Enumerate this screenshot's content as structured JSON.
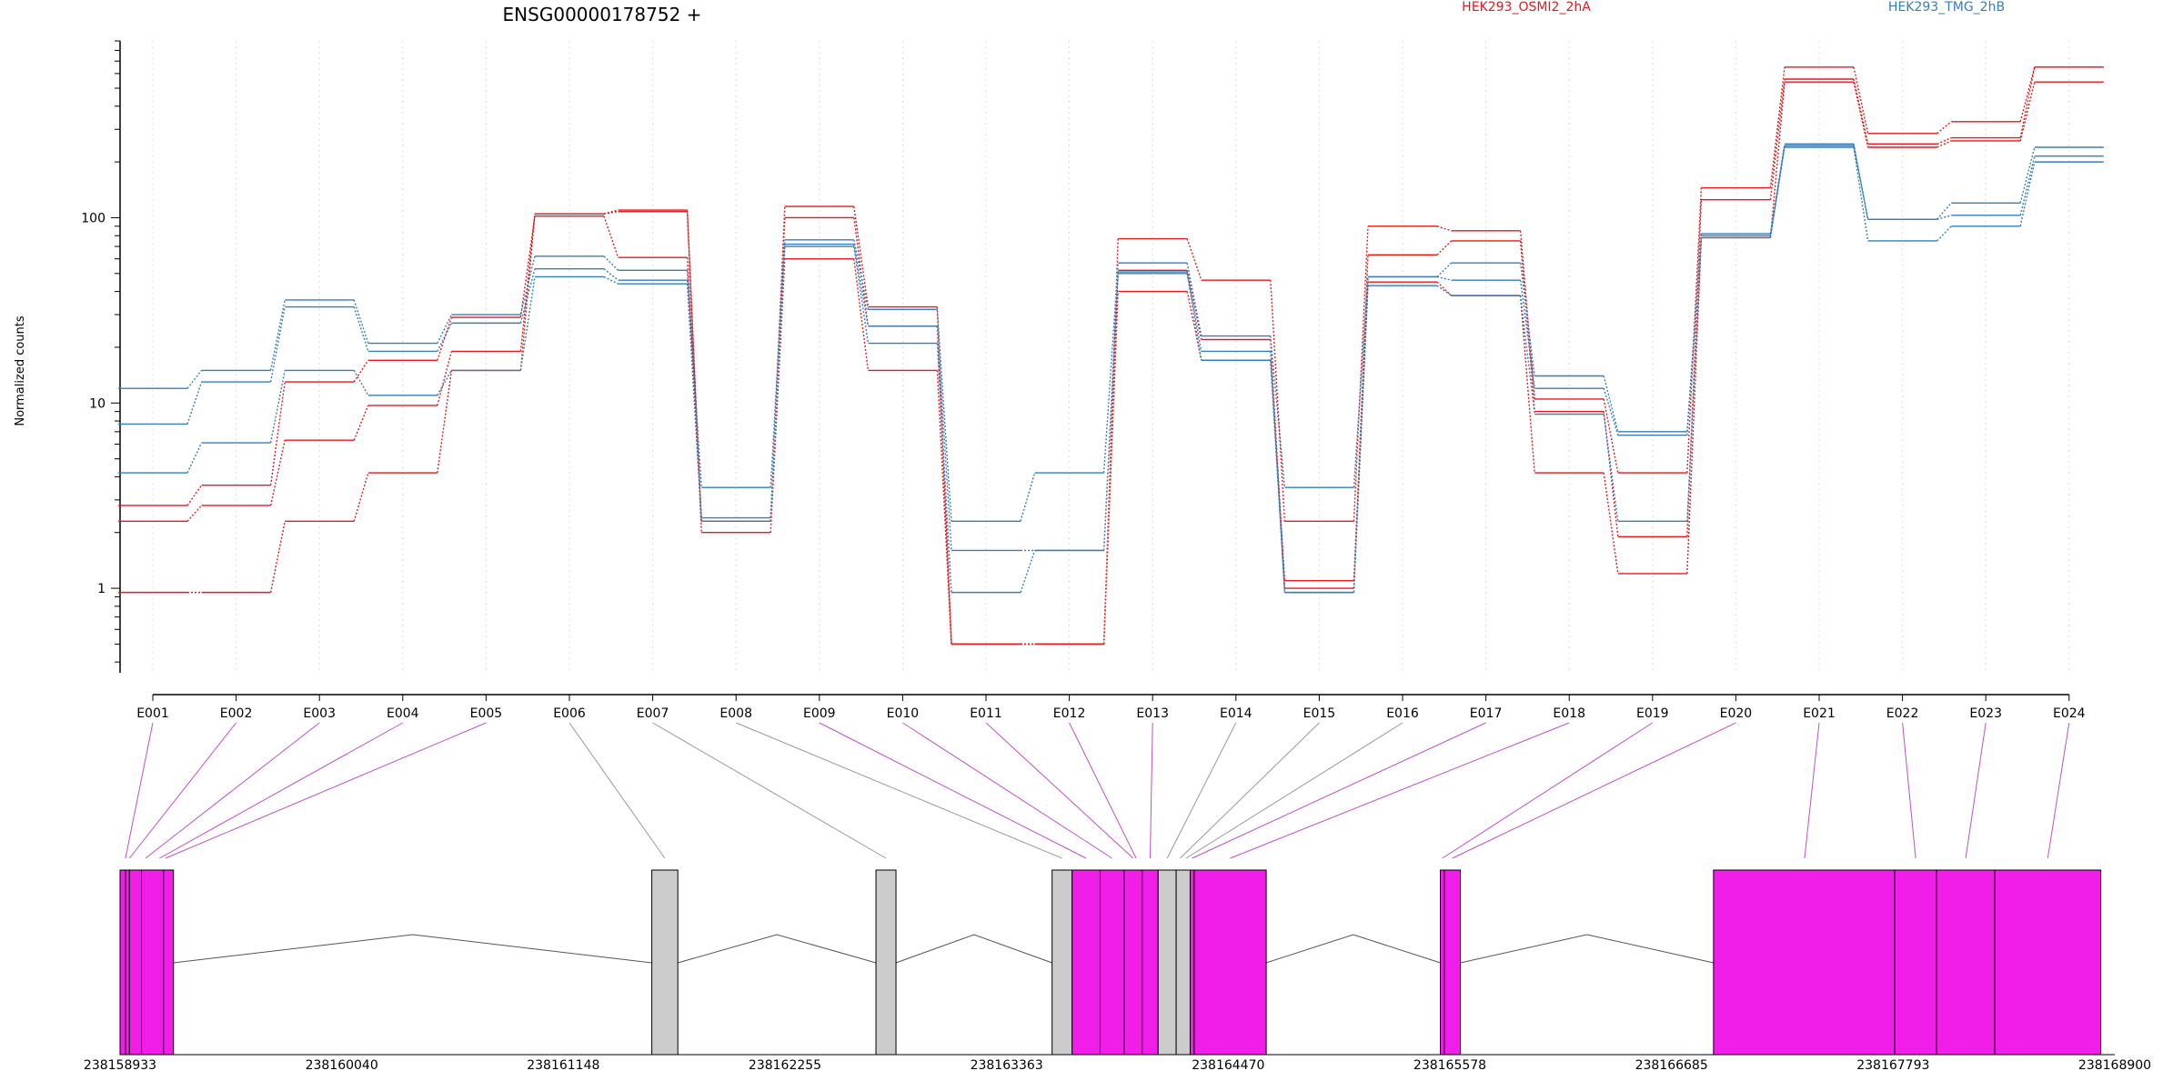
{
  "chart_data": {
    "type": "line",
    "title": "ENSG00000178752 +",
    "ylabel": "Normalized counts",
    "xlabel": "",
    "yscale": "log",
    "ylim": [
      0.35,
      900
    ],
    "yticks": [
      1,
      10,
      100
    ],
    "ytick_labels": [
      "1",
      "10",
      "100"
    ],
    "grid": "vertical dotted",
    "legend": [
      {
        "name": "HEK293_OSMI2_2hA",
        "color": "#e41a1c",
        "placement": "top-center-right"
      },
      {
        "name": "HEK293_TMG_2hB",
        "color": "#377eb8",
        "placement": "top-right"
      }
    ],
    "categories": [
      "E001",
      "E002",
      "E003",
      "E004",
      "E005",
      "E006",
      "E007",
      "E008",
      "E009",
      "E010",
      "E011",
      "E012",
      "E013",
      "E014",
      "E015",
      "E016",
      "E017",
      "E018",
      "E019",
      "E020",
      "E021",
      "E022",
      "E023",
      "E024"
    ],
    "series": [
      {
        "group": "HEK293_OSMI2_2hA",
        "color": "#e41a1c",
        "values": [
          0.95,
          0.95,
          2.3,
          4.2,
          15,
          105,
          110,
          2.0,
          60,
          15,
          0.5,
          0.5,
          40,
          17,
          1.1,
          45,
          38,
          4.2,
          1.2,
          78,
          540,
          240,
          260,
          540
        ]
      },
      {
        "group": "HEK293_OSMI2_2hA",
        "color": "#e41a1c",
        "values": [
          2.3,
          2.8,
          6.3,
          9.7,
          19,
          105,
          108,
          2.3,
          100,
          26,
          0.5,
          0.5,
          52,
          22,
          1.0,
          63,
          75,
          9.0,
          1.9,
          125,
          560,
          250,
          270,
          650
        ]
      },
      {
        "group": "HEK293_OSMI2_2hA",
        "color": "#e41a1c",
        "values": [
          2.8,
          3.6,
          13,
          17,
          29,
          102,
          61,
          2.3,
          115,
          33,
          0.5,
          0.5,
          77,
          46,
          2.3,
          90,
          85,
          10.5,
          4.2,
          145,
          650,
          285,
          330,
          650
        ]
      },
      {
        "group": "HEK293_TMG_2hB",
        "color": "#377eb8",
        "values": [
          4.2,
          6.1,
          15,
          11,
          15,
          48,
          44,
          2.3,
          70,
          21,
          0.95,
          1.6,
          50,
          17,
          0.95,
          43,
          38,
          8.7,
          2.3,
          78,
          240,
          75,
          90,
          200
        ]
      },
      {
        "group": "HEK293_TMG_2hB",
        "color": "#377eb8",
        "values": [
          7.7,
          13,
          33,
          19,
          27,
          53,
          46,
          2.4,
          72,
          26,
          1.6,
          1.6,
          51,
          19,
          0.95,
          48,
          46,
          12,
          6.7,
          80,
          245,
          98,
          103,
          215
        ]
      },
      {
        "group": "HEK293_TMG_2hB",
        "color": "#377eb8",
        "values": [
          12,
          15,
          36,
          21,
          30,
          62,
          52,
          3.5,
          76,
          32,
          2.3,
          4.2,
          57,
          23,
          3.5,
          48,
          57,
          14,
          7.0,
          82,
          250,
          98,
          120,
          240
        ]
      }
    ],
    "gene_model": {
      "coordinate_labels": [
        "238158933",
        "238160040",
        "238161148",
        "238162255",
        "238163363",
        "238164470",
        "238165578",
        "238166685",
        "238167793",
        "238168900"
      ],
      "coord_range": [
        238158933,
        238168900
      ],
      "features": [
        {
          "start": 238158933,
          "end": 238158960,
          "type": "exon",
          "color": "#f01ee8"
        },
        {
          "start": 238158960,
          "end": 238158980,
          "type": "exon",
          "color": "#f01ee8"
        },
        {
          "start": 238158980,
          "end": 238159040,
          "type": "exon",
          "color": "#f01ee8"
        },
        {
          "start": 238159040,
          "end": 238159150,
          "type": "exon",
          "color": "#f01ee8"
        },
        {
          "start": 238159150,
          "end": 238159200,
          "type": "exon",
          "color": "#f01ee8"
        },
        {
          "start": 238161590,
          "end": 238161720,
          "type": "exon",
          "color": "#cccccc"
        },
        {
          "start": 238162710,
          "end": 238162810,
          "type": "exon",
          "color": "#cccccc"
        },
        {
          "start": 238163590,
          "end": 238163690,
          "type": "exon",
          "color": "#cccccc"
        },
        {
          "start": 238163690,
          "end": 238163830,
          "type": "exon",
          "color": "#f01ee8"
        },
        {
          "start": 238163830,
          "end": 238163950,
          "type": "exon",
          "color": "#f01ee8"
        },
        {
          "start": 238163950,
          "end": 238164040,
          "type": "exon",
          "color": "#f01ee8"
        },
        {
          "start": 238164040,
          "end": 238164120,
          "type": "exon",
          "color": "#f01ee8"
        },
        {
          "start": 238164120,
          "end": 238164210,
          "type": "exon",
          "color": "#cccccc"
        },
        {
          "start": 238164210,
          "end": 238164280,
          "type": "exon",
          "color": "#cccccc"
        },
        {
          "start": 238164280,
          "end": 238164300,
          "type": "exon",
          "color": "#f01ee8"
        },
        {
          "start": 238164300,
          "end": 238164660,
          "type": "exon",
          "color": "#f01ee8"
        },
        {
          "start": 238165530,
          "end": 238165550,
          "type": "exon",
          "color": "#f01ee8"
        },
        {
          "start": 238165550,
          "end": 238165630,
          "type": "exon",
          "color": "#f01ee8"
        },
        {
          "start": 238166895,
          "end": 238167800,
          "type": "exon",
          "color": "#f01ee8"
        },
        {
          "start": 238167800,
          "end": 238168010,
          "type": "exon",
          "color": "#f01ee8"
        },
        {
          "start": 238168010,
          "end": 238168300,
          "type": "exon",
          "color": "#f01ee8"
        },
        {
          "start": 238168300,
          "end": 238168830,
          "type": "exon",
          "color": "#f01ee8"
        }
      ],
      "introns": [
        [
          238159200,
          238161590
        ],
        [
          238161720,
          238162710
        ],
        [
          238162810,
          238163590
        ],
        [
          238164660,
          238165530
        ],
        [
          238165630,
          238166895
        ]
      ],
      "connectors": [
        {
          "exon": "E001",
          "coord": 238158960,
          "color": "#c050c8"
        },
        {
          "exon": "E002",
          "coord": 238158980,
          "color": "#c050c8"
        },
        {
          "exon": "E003",
          "coord": 238159060,
          "color": "#c050c8"
        },
        {
          "exon": "E004",
          "coord": 238159130,
          "color": "#c050c8"
        },
        {
          "exon": "E005",
          "coord": 238159160,
          "color": "#c050c8"
        },
        {
          "exon": "E006",
          "coord": 238161655,
          "color": "#999999"
        },
        {
          "exon": "E007",
          "coord": 238162760,
          "color": "#999999"
        },
        {
          "exon": "E008",
          "coord": 238163640,
          "color": "#999999"
        },
        {
          "exon": "E009",
          "coord": 238163760,
          "color": "#c050c8"
        },
        {
          "exon": "E010",
          "coord": 238163890,
          "color": "#c050c8"
        },
        {
          "exon": "E011",
          "coord": 238163995,
          "color": "#c050c8"
        },
        {
          "exon": "E012",
          "coord": 238164010,
          "color": "#c050c8"
        },
        {
          "exon": "E013",
          "coord": 238164080,
          "color": "#c050c8"
        },
        {
          "exon": "E014",
          "coord": 238164165,
          "color": "#999999"
        },
        {
          "exon": "E015",
          "coord": 238164230,
          "color": "#999999"
        },
        {
          "exon": "E016",
          "coord": 238164260,
          "color": "#999999"
        },
        {
          "exon": "E017",
          "coord": 238164290,
          "color": "#c050c8"
        },
        {
          "exon": "E018",
          "coord": 238164480,
          "color": "#c050c8"
        },
        {
          "exon": "E019",
          "coord": 238165540,
          "color": "#c050c8"
        },
        {
          "exon": "E020",
          "coord": 238165590,
          "color": "#c050c8"
        },
        {
          "exon": "E021",
          "coord": 238167350,
          "color": "#c050c8"
        },
        {
          "exon": "E022",
          "coord": 238167905,
          "color": "#c050c8"
        },
        {
          "exon": "E023",
          "coord": 238168155,
          "color": "#c050c8"
        },
        {
          "exon": "E024",
          "coord": 238168565,
          "color": "#c050c8"
        }
      ]
    }
  }
}
